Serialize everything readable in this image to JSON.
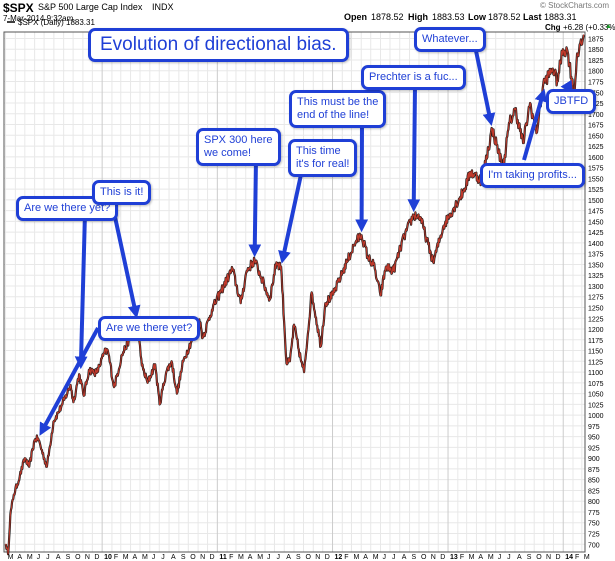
{
  "header": {
    "symbol": "$SPX",
    "name": "S&P 500 Large Cap Index",
    "exchange": "INDX",
    "date": "7-Mar-2014 9:32am",
    "watermark": "© StockCharts.com",
    "open_label": "Open",
    "open": "1878.52",
    "high_label": "High",
    "high": "1883.53",
    "low_label": "Low",
    "low": "1878.52",
    "last_label": "Last",
    "last": "1883.31",
    "chg_label": "Chg",
    "chg": "+6.28 (+0.33%)",
    "chg_arrow": "▲"
  },
  "legend_label": "$SPX (Daily) 1883.31",
  "colors": {
    "price_line": "#c0392b",
    "callout": "#1f3fd6",
    "grid": "#e8e8e8"
  },
  "chart_data": {
    "type": "line",
    "title": "",
    "series": [
      {
        "name": "$SPX (Daily) 1883.31",
        "x": [
          "2009-03-02",
          "2009-03-09",
          "2009-03-16",
          "2009-03-27",
          "2009-04-15",
          "2009-05-01",
          "2009-05-15",
          "2009-06-01",
          "2009-06-12",
          "2009-07-10",
          "2009-07-31",
          "2009-08-28",
          "2009-09-23",
          "2009-10-02",
          "2009-10-20",
          "2009-11-04",
          "2009-11-20",
          "2009-12-15",
          "2010-01-08",
          "2010-01-19",
          "2010-02-08",
          "2010-03-05",
          "2010-04-23",
          "2010-05-07",
          "2010-05-25",
          "2010-06-18",
          "2010-07-02",
          "2010-07-23",
          "2010-08-09",
          "2010-08-26",
          "2010-09-15",
          "2010-10-15",
          "2010-11-05",
          "2010-11-16",
          "2010-12-15",
          "2011-01-14",
          "2011-02-18",
          "2011-03-16",
          "2011-04-04",
          "2011-04-29",
          "2011-05-20",
          "2011-06-16",
          "2011-07-07",
          "2011-07-22",
          "2011-08-08",
          "2011-08-19",
          "2011-09-01",
          "2011-09-22",
          "2011-10-03",
          "2011-10-27",
          "2011-11-25",
          "2011-12-09",
          "2012-01-03",
          "2012-02-15",
          "2012-03-16",
          "2012-04-02",
          "2012-04-23",
          "2012-05-10",
          "2012-06-01",
          "2012-06-18",
          "2012-07-12",
          "2012-08-15",
          "2012-09-14",
          "2012-10-05",
          "2012-11-15",
          "2012-12-18",
          "2013-01-02",
          "2013-02-19",
          "2013-03-14",
          "2013-04-18",
          "2013-05-21",
          "2013-06-24",
          "2013-07-15",
          "2013-08-02",
          "2013-08-27",
          "2013-09-18",
          "2013-10-08",
          "2013-10-30",
          "2013-11-29",
          "2013-12-13",
          "2013-12-31",
          "2014-01-15",
          "2014-02-05",
          "2014-02-14",
          "2014-02-28",
          "2014-03-07"
        ],
        "y": [
          700,
          677,
          768,
          815,
          858,
          900,
          880,
          942,
          946,
          880,
          985,
          1025,
          1070,
          1030,
          1095,
          1045,
          1105,
          1098,
          1145,
          1150,
          1065,
          1140,
          1218,
          1115,
          1075,
          1118,
          1025,
          1100,
          1125,
          1050,
          1125,
          1180,
          1222,
          1180,
          1245,
          1290,
          1340,
          1260,
          1335,
          1360,
          1320,
          1268,
          1355,
          1345,
          1120,
          1125,
          1210,
          1130,
          1100,
          1285,
          1160,
          1260,
          1280,
          1355,
          1405,
          1418,
          1365,
          1350,
          1278,
          1345,
          1335,
          1415,
          1465,
          1460,
          1355,
          1440,
          1460,
          1520,
          1565,
          1545,
          1665,
          1575,
          1680,
          1710,
          1632,
          1725,
          1655,
          1770,
          1805,
          1775,
          1850,
          1845,
          1740,
          1840,
          1860,
          1883
        ]
      }
    ],
    "y_ticks": [
      700,
      725,
      750,
      775,
      800,
      825,
      850,
      875,
      900,
      925,
      950,
      975,
      1000,
      1025,
      1050,
      1075,
      1100,
      1125,
      1150,
      1175,
      1200,
      1225,
      1250,
      1275,
      1300,
      1325,
      1350,
      1375,
      1400,
      1425,
      1450,
      1475,
      1500,
      1525,
      1550,
      1575,
      1600,
      1625,
      1650,
      1675,
      1700,
      1725,
      1750,
      1775,
      1800,
      1825,
      1850,
      1875
    ],
    "ylim": [
      682,
      1890
    ],
    "xlim": [
      "2009-02-24",
      "2014-03-11"
    ],
    "x_ticks": [
      {
        "label": "M",
        "date": "2009-03-01"
      },
      {
        "label": "A",
        "date": "2009-04-01"
      },
      {
        "label": "M",
        "date": "2009-05-01"
      },
      {
        "label": "J",
        "date": "2009-06-01"
      },
      {
        "label": "J",
        "date": "2009-07-01"
      },
      {
        "label": "A",
        "date": "2009-08-01"
      },
      {
        "label": "S",
        "date": "2009-09-01"
      },
      {
        "label": "O",
        "date": "2009-10-01"
      },
      {
        "label": "N",
        "date": "2009-11-01"
      },
      {
        "label": "D",
        "date": "2009-12-01"
      },
      {
        "label": "10",
        "date": "2010-01-01",
        "major": true
      },
      {
        "label": "F",
        "date": "2010-02-01"
      },
      {
        "label": "M",
        "date": "2010-03-01"
      },
      {
        "label": "A",
        "date": "2010-04-01"
      },
      {
        "label": "M",
        "date": "2010-05-01"
      },
      {
        "label": "J",
        "date": "2010-06-01"
      },
      {
        "label": "J",
        "date": "2010-07-01"
      },
      {
        "label": "A",
        "date": "2010-08-01"
      },
      {
        "label": "S",
        "date": "2010-09-01"
      },
      {
        "label": "O",
        "date": "2010-10-01"
      },
      {
        "label": "N",
        "date": "2010-11-01"
      },
      {
        "label": "D",
        "date": "2010-12-01"
      },
      {
        "label": "11",
        "date": "2011-01-01",
        "major": true
      },
      {
        "label": "F",
        "date": "2011-02-01"
      },
      {
        "label": "M",
        "date": "2011-03-01"
      },
      {
        "label": "A",
        "date": "2011-04-01"
      },
      {
        "label": "M",
        "date": "2011-05-01"
      },
      {
        "label": "J",
        "date": "2011-06-01"
      },
      {
        "label": "J",
        "date": "2011-07-01"
      },
      {
        "label": "A",
        "date": "2011-08-01"
      },
      {
        "label": "S",
        "date": "2011-09-01"
      },
      {
        "label": "O",
        "date": "2011-10-01"
      },
      {
        "label": "N",
        "date": "2011-11-01"
      },
      {
        "label": "D",
        "date": "2011-12-01"
      },
      {
        "label": "12",
        "date": "2012-01-01",
        "major": true
      },
      {
        "label": "F",
        "date": "2012-02-01"
      },
      {
        "label": "M",
        "date": "2012-03-01"
      },
      {
        "label": "A",
        "date": "2012-04-01"
      },
      {
        "label": "M",
        "date": "2012-05-01"
      },
      {
        "label": "J",
        "date": "2012-06-01"
      },
      {
        "label": "J",
        "date": "2012-07-01"
      },
      {
        "label": "A",
        "date": "2012-08-01"
      },
      {
        "label": "S",
        "date": "2012-09-01"
      },
      {
        "label": "O",
        "date": "2012-10-01"
      },
      {
        "label": "N",
        "date": "2012-11-01"
      },
      {
        "label": "D",
        "date": "2012-12-01"
      },
      {
        "label": "13",
        "date": "2013-01-01",
        "major": true
      },
      {
        "label": "F",
        "date": "2013-02-01"
      },
      {
        "label": "M",
        "date": "2013-03-01"
      },
      {
        "label": "A",
        "date": "2013-04-01"
      },
      {
        "label": "M",
        "date": "2013-05-01"
      },
      {
        "label": "J",
        "date": "2013-06-01"
      },
      {
        "label": "J",
        "date": "2013-07-01"
      },
      {
        "label": "A",
        "date": "2013-08-01"
      },
      {
        "label": "S",
        "date": "2013-09-01"
      },
      {
        "label": "O",
        "date": "2013-10-01"
      },
      {
        "label": "N",
        "date": "2013-11-01"
      },
      {
        "label": "D",
        "date": "2013-12-01"
      },
      {
        "label": "14",
        "date": "2014-01-01",
        "major": true
      },
      {
        "label": "F",
        "date": "2014-02-01"
      },
      {
        "label": "M",
        "date": "2014-03-01"
      }
    ],
    "grid": true,
    "legend_position": "top-left",
    "annotations": [
      {
        "id": "title",
        "text": "Evolution of directional bias.",
        "target_date": null,
        "target_value": null
      },
      {
        "id": "there-yet-1",
        "text": "Are we there yet?",
        "target_date": "2009-10-25",
        "target_value": 1100
      },
      {
        "id": "this-is-it",
        "text": "This is it!",
        "target_date": "2010-04-23",
        "target_value": 1218
      },
      {
        "id": "spx-300",
        "text": "SPX 300 here\nwe come!",
        "target_date": "2011-04-29",
        "target_value": 1360
      },
      {
        "id": "for-real",
        "text": "This time\nit's for real!",
        "target_date": "2011-07-22",
        "target_value": 1345
      },
      {
        "id": "end-of-line",
        "text": "This must be the\nend of the line!",
        "target_date": "2012-04-02",
        "target_value": 1418
      },
      {
        "id": "prechter",
        "text": "Prechter is a fuc...",
        "target_date": "2012-09-14",
        "target_value": 1465
      },
      {
        "id": "whatever",
        "text": "Whatever...",
        "target_date": "2013-05-21",
        "target_value": 1665
      },
      {
        "id": "profits",
        "text": "I'm taking profits...",
        "target_date": "2013-11-05",
        "target_value": 1765
      },
      {
        "id": "jbtfd",
        "text": "JBTFD",
        "target_date": "2014-02-05",
        "target_value": 1740
      },
      {
        "id": "there-yet-2",
        "text": "Are we there yet?",
        "target_date": "2009-06-12",
        "target_value": 946
      }
    ]
  }
}
